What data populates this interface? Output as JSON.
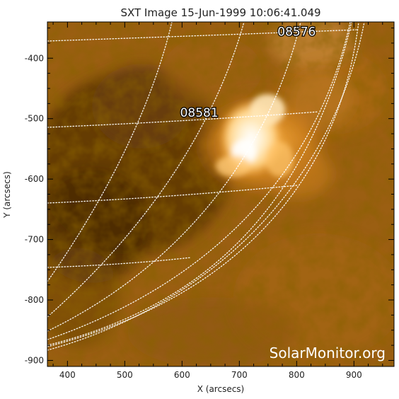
{
  "title": "SXT Image 15-Jun-1999 10:06:41.049",
  "xlabel": "X (arcsecs)",
  "ylabel": "Y (arcsecs)",
  "x_range": [
    365,
    970
  ],
  "y_range": [
    -910,
    -340
  ],
  "x_ticks": [
    400,
    500,
    600,
    700,
    800,
    900
  ],
  "y_ticks": [
    -400,
    -500,
    -600,
    -700,
    -800,
    -900
  ],
  "regions": [
    {
      "id": "08576",
      "x": 800,
      "y": -363
    },
    {
      "id": "08581",
      "x": 630,
      "y": -497
    }
  ],
  "watermark": "SolarMonitor.org",
  "colors": {
    "colormap": "yohkoh-sxt-orange",
    "grid": "#ffffff",
    "frame": "#000000"
  }
}
